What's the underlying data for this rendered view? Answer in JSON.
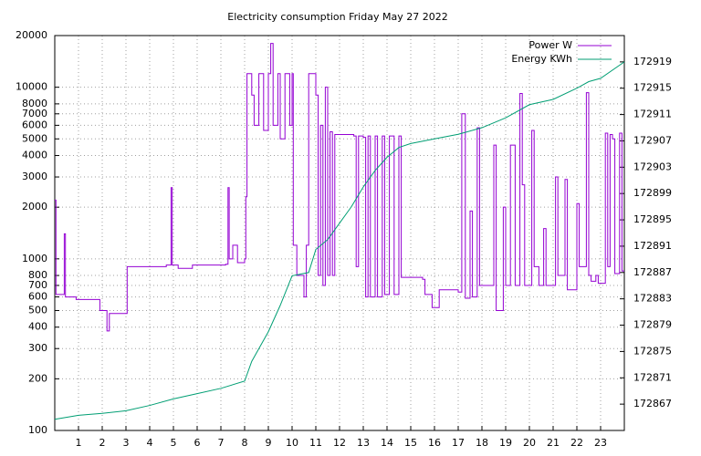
{
  "chart_data": {
    "type": "line",
    "title": "Electricity consumption Friday May 27 2022",
    "xlim": [
      0,
      24
    ],
    "xticks": [
      1,
      2,
      3,
      4,
      5,
      6,
      7,
      8,
      9,
      10,
      11,
      12,
      13,
      14,
      15,
      16,
      17,
      18,
      19,
      20,
      21,
      22,
      23
    ],
    "ylim": [
      100,
      20000
    ],
    "log_y": true,
    "yticks": [
      100,
      200,
      300,
      400,
      500,
      600,
      700,
      800,
      1000,
      2000,
      3000,
      4000,
      5000,
      6000,
      7000,
      8000,
      10000,
      20000
    ],
    "y2lim": [
      172863,
      172923
    ],
    "y2ticks": [
      172867,
      172871,
      172875,
      172879,
      172883,
      172887,
      172891,
      172895,
      172899,
      172903,
      172907,
      172911,
      172915,
      172919
    ],
    "grid": true,
    "legend": "top-right",
    "series": [
      {
        "name": "Power W",
        "color": "#9400d3",
        "step": true,
        "x": [
          0,
          0.05,
          0.4,
          0.45,
          0.9,
          1.9,
          2.2,
          2.3,
          3.0,
          3.05,
          4.7,
          4.9,
          4.95,
          5.2,
          5.8,
          7.2,
          7.3,
          7.35,
          7.5,
          7.7,
          8.0,
          8.05,
          8.1,
          8.3,
          8.4,
          8.6,
          8.8,
          9.0,
          9.1,
          9.2,
          9.4,
          9.5,
          9.7,
          9.9,
          10.0,
          10.05,
          10.2,
          10.5,
          10.6,
          10.7,
          11.0,
          11.1,
          11.2,
          11.3,
          11.4,
          11.5,
          11.6,
          11.7,
          11.8,
          12.6,
          12.7,
          12.8,
          13.0,
          13.1,
          13.2,
          13.3,
          13.5,
          13.6,
          13.8,
          13.9,
          14.1,
          14.3,
          14.5,
          14.6,
          15.5,
          15.6,
          15.9,
          16.2,
          17.0,
          17.15,
          17.3,
          17.5,
          17.6,
          17.8,
          17.9,
          18.4,
          18.5,
          18.6,
          18.9,
          19.0,
          19.2,
          19.4,
          19.6,
          19.7,
          19.8,
          20.1,
          20.2,
          20.4,
          20.6,
          20.7,
          21.1,
          21.2,
          21.5,
          21.6,
          22.0,
          22.1,
          22.4,
          22.5,
          22.6,
          22.8,
          22.9,
          23.2,
          23.3,
          23.4,
          23.5,
          23.6,
          23.8,
          23.9
        ],
        "values": [
          2200,
          620,
          1400,
          600,
          580,
          500,
          380,
          480,
          480,
          900,
          920,
          2600,
          920,
          880,
          920,
          930,
          2600,
          1000,
          1200,
          950,
          1000,
          2300,
          12000,
          9000,
          6000,
          12000,
          5600,
          12000,
          18000,
          6000,
          12000,
          5000,
          12000,
          6000,
          12000,
          1200,
          800,
          600,
          1200,
          12000,
          9000,
          800,
          6000,
          700,
          10000,
          800,
          5500,
          800,
          5300,
          5200,
          900,
          5200,
          5100,
          600,
          5200,
          600,
          5200,
          600,
          5200,
          620,
          5200,
          620,
          5200,
          780,
          760,
          620,
          520,
          660,
          640,
          7000,
          590,
          1900,
          600,
          5800,
          700,
          700,
          4600,
          500,
          2000,
          700,
          4600,
          700,
          9200,
          2700,
          700,
          5600,
          900,
          700,
          1500,
          700,
          3000,
          800,
          2900,
          660,
          2100,
          900,
          9300,
          800,
          740,
          800,
          720,
          5400,
          900,
          5300,
          5000,
          820,
          5400,
          850
        ]
      },
      {
        "name": "Energy KWh",
        "color": "#009e73",
        "axis": "y2",
        "x": [
          0,
          1,
          2,
          3,
          4,
          5,
          6,
          7,
          8,
          8.3,
          9,
          9.5,
          10,
          10.7,
          11,
          11.5,
          12,
          12.5,
          13,
          13.5,
          14,
          14.5,
          15,
          16,
          17,
          18,
          19,
          20,
          21,
          22,
          22.5,
          23,
          24
        ],
        "values": [
          172864.7,
          172865.3,
          172865.6,
          172866,
          172866.8,
          172867.8,
          172868.6,
          172869.4,
          172870.5,
          172873.5,
          172878,
          172882,
          172886.5,
          172887,
          172890.5,
          172892,
          172894.5,
          172897,
          172900,
          172902.5,
          172904.5,
          172906,
          172906.6,
          172907.3,
          172908,
          172909,
          172910.5,
          172912.5,
          172913.3,
          172915,
          172916,
          172916.5,
          172919
        ]
      }
    ]
  }
}
